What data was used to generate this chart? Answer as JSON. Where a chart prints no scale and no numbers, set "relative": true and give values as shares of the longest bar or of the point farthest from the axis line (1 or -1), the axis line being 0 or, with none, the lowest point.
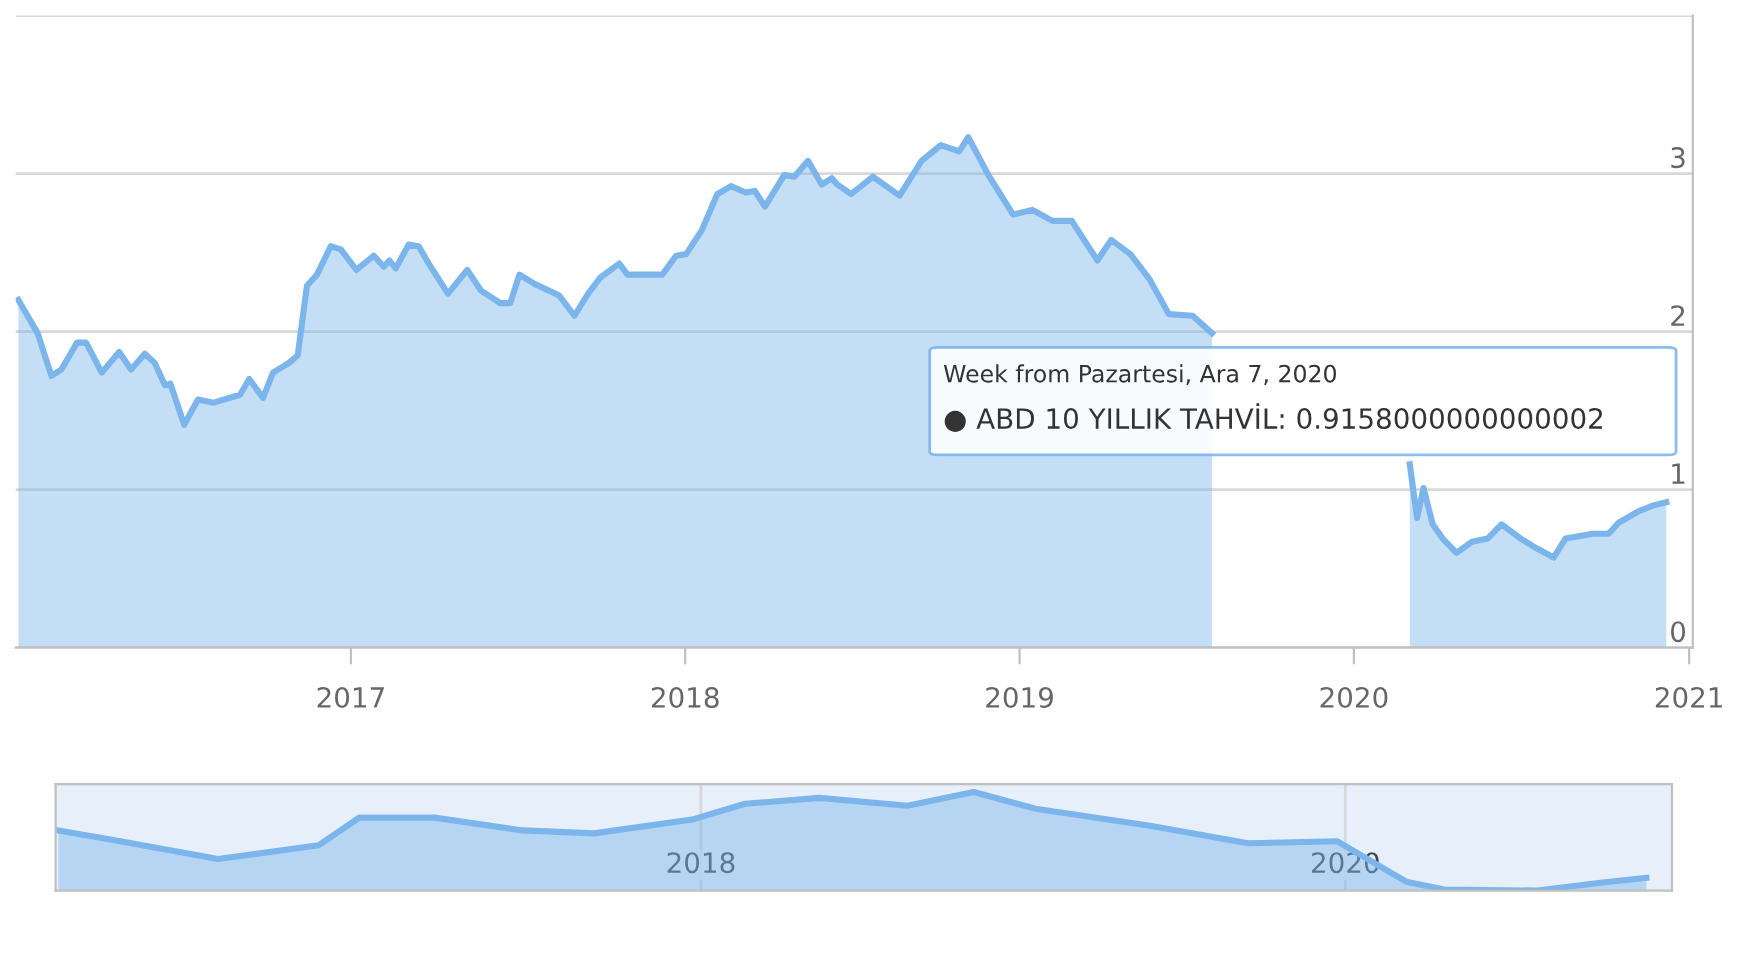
{
  "chart_data": [
    {
      "type": "area",
      "x": [
        "2016-01-04",
        "2016-01-25",
        "2016-02-09",
        "2016-02-20",
        "2016-03-08",
        "2016-03-18",
        "2016-04-04",
        "2016-04-23",
        "2016-05-06",
        "2016-05-21",
        "2016-06-01",
        "2016-06-12",
        "2016-06-18",
        "2016-07-03",
        "2016-07-18",
        "2016-08-04",
        "2016-09-02",
        "2016-09-12",
        "2016-09-27",
        "2016-10-08",
        "2016-10-25",
        "2016-11-04",
        "2016-11-14",
        "2016-11-25",
        "2016-12-10",
        "2016-12-21",
        "2017-01-07",
        "2017-01-26",
        "2017-02-06",
        "2017-02-12",
        "2017-02-19",
        "2017-03-05",
        "2017-03-16",
        "2017-03-27",
        "2017-04-17",
        "2017-05-08",
        "2017-05-23",
        "2017-06-13",
        "2017-06-24",
        "2017-07-04",
        "2017-07-21",
        "2017-08-16",
        "2017-09-02",
        "2017-09-17",
        "2017-09-30",
        "2017-10-21",
        "2017-10-30",
        "2017-11-16",
        "2017-12-07",
        "2017-12-22",
        "2018-01-02",
        "2018-01-19",
        "2018-02-05",
        "2018-02-20",
        "2018-03-08",
        "2018-03-18",
        "2018-03-29",
        "2018-04-19",
        "2018-04-30",
        "2018-05-15",
        "2018-05-30",
        "2018-06-10",
        "2018-06-16",
        "2018-07-01",
        "2018-07-25",
        "2018-08-23",
        "2018-09-16",
        "2018-10-07",
        "2018-10-27",
        "2018-11-06",
        "2018-11-28",
        "2018-12-25",
        "2019-01-15",
        "2019-02-06",
        "2019-02-27",
        "2019-03-27",
        "2019-04-11",
        "2019-05-02",
        "2019-05-23",
        "2019-06-13",
        "2019-07-09",
        "2019-07-30",
        "2019-09-13",
        "2019-10-26",
        "2019-11-25",
        "2019-12-23",
        "2020-01-19",
        "2020-02-18",
        "2020-03-02",
        "2020-03-10",
        "2020-03-17",
        "2020-03-27",
        "2020-04-07",
        "2020-04-22",
        "2020-05-09",
        "2020-05-26",
        "2020-06-10",
        "2020-07-01",
        "2020-07-18",
        "2020-08-06",
        "2020-08-19",
        "2020-09-18",
        "2020-10-05",
        "2020-10-16",
        "2020-11-06",
        "2020-11-23",
        "2020-12-07"
      ],
      "series": [
        {
          "color": "#7cb5ec",
          "values": [
            2.2,
            1.99,
            1.72,
            1.76,
            1.93,
            1.93,
            1.74,
            1.87,
            1.76,
            1.86,
            1.8,
            1.66,
            1.67,
            1.41,
            1.57,
            1.55,
            1.6,
            1.7,
            1.58,
            1.74,
            1.8,
            1.85,
            2.29,
            2.36,
            2.54,
            2.52,
            2.39,
            2.48,
            2.41,
            2.45,
            2.4,
            2.55,
            2.54,
            2.43,
            2.24,
            2.39,
            2.26,
            2.18,
            2.18,
            2.36,
            2.3,
            2.23,
            2.1,
            2.24,
            2.34,
            2.43,
            2.36,
            2.36,
            2.36,
            2.48,
            2.49,
            2.64,
            2.87,
            2.92,
            2.88,
            2.89,
            2.79,
            2.99,
            2.98,
            3.08,
            2.93,
            2.97,
            2.93,
            2.87,
            2.98,
            2.86,
            3.08,
            3.18,
            3.14,
            3.23,
            2.99,
            2.74,
            2.77,
            2.7,
            2.7,
            2.45,
            2.58,
            2.49,
            2.33,
            2.11,
            2.1,
            1.99,
            null,
            null,
            null,
            null,
            null,
            null,
            1.16,
            0.82,
            1.01,
            0.78,
            0.69,
            0.6,
            0.67,
            0.69,
            0.78,
            0.69,
            0.63,
            0.57,
            0.69,
            0.72,
            0.72,
            0.79,
            0.86,
            0.9,
            0.92
          ]
        }
      ],
      "xlim": [
        "2016-01-01",
        "2021-01-05"
      ],
      "xticks": [
        "2017",
        "2018",
        "2019",
        "2020",
        "2021"
      ],
      "ylim": [
        0,
        4
      ],
      "yticks": [
        0,
        1,
        2,
        3,
        {
          "value": 4,
          "label": null
        }
      ],
      "grid": "y",
      "annotations": [
        "Week from Pazartesi, Ara 7, 2020",
        "● ABD 10 YILLIK TAHVİL: 0.9158000000000002"
      ]
    },
    {
      "type": "area",
      "relative": true,
      "x": [
        "2016-01-04",
        "2016-03-08",
        "2016-07-03",
        "2016-10-25",
        "2016-12-10",
        "2017-03-05",
        "2017-06-13",
        "2017-09-02",
        "2017-12-22",
        "2018-02-20",
        "2018-05-15",
        "2018-08-23",
        "2018-11-06",
        "2019-01-15",
        "2019-05-23",
        "2019-09-13",
        "2019-12-23",
        "2020-03-10",
        "2020-04-22",
        "2020-08-06",
        "2020-10-16",
        "2020-12-07"
      ],
      "series": [
        {
          "color": "#7cb5ec",
          "values": [
            0.61,
            0.51,
            0.32,
            0.46,
            0.74,
            0.74,
            0.61,
            0.58,
            0.72,
            0.88,
            0.94,
            0.86,
            1,
            0.83,
            0.66,
            0.48,
            0.5,
            0.09,
            0.01,
            0,
            0.08,
            0.13
          ]
        }
      ],
      "xlim": [
        "2016-01-01",
        "2021-01-05"
      ],
      "xticks": [
        "2018",
        "2020"
      ],
      "grid": "x",
      "tick_labels": "x"
    }
  ]
}
